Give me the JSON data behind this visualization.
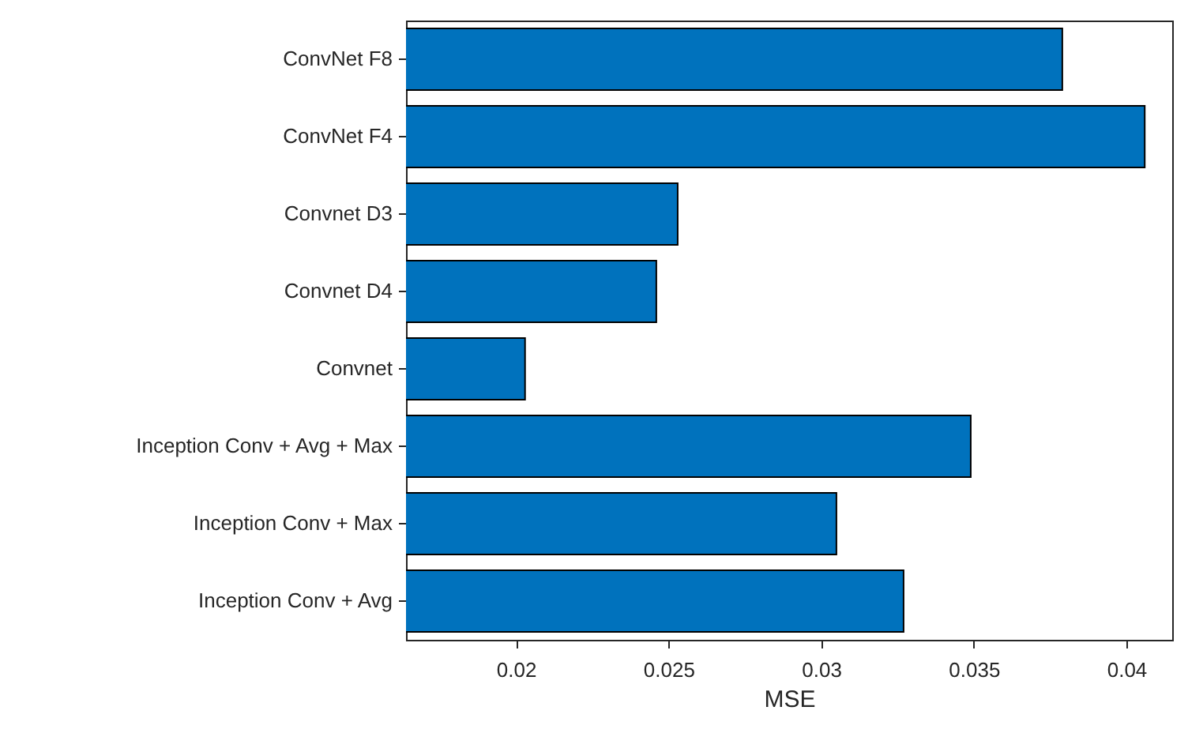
{
  "chart_data": {
    "type": "bar",
    "orientation": "horizontal",
    "xlabel": "MSE",
    "categories": [
      "ConvNet F8",
      "ConvNet F4",
      "Convnet D3",
      "Convnet D4",
      "Convnet",
      "Inception Conv + Avg + Max",
      "Inception Conv + Max",
      "Inception Conv + Avg"
    ],
    "values": [
      0.0379,
      0.0406,
      0.0253,
      0.0246,
      0.0203,
      0.0349,
      0.0305,
      0.0327
    ],
    "color": "#0072bd",
    "xlim": [
      0.0164,
      0.0415
    ],
    "xticks": [
      0.02,
      0.025,
      0.03,
      0.035,
      0.04
    ],
    "grid": false
  }
}
